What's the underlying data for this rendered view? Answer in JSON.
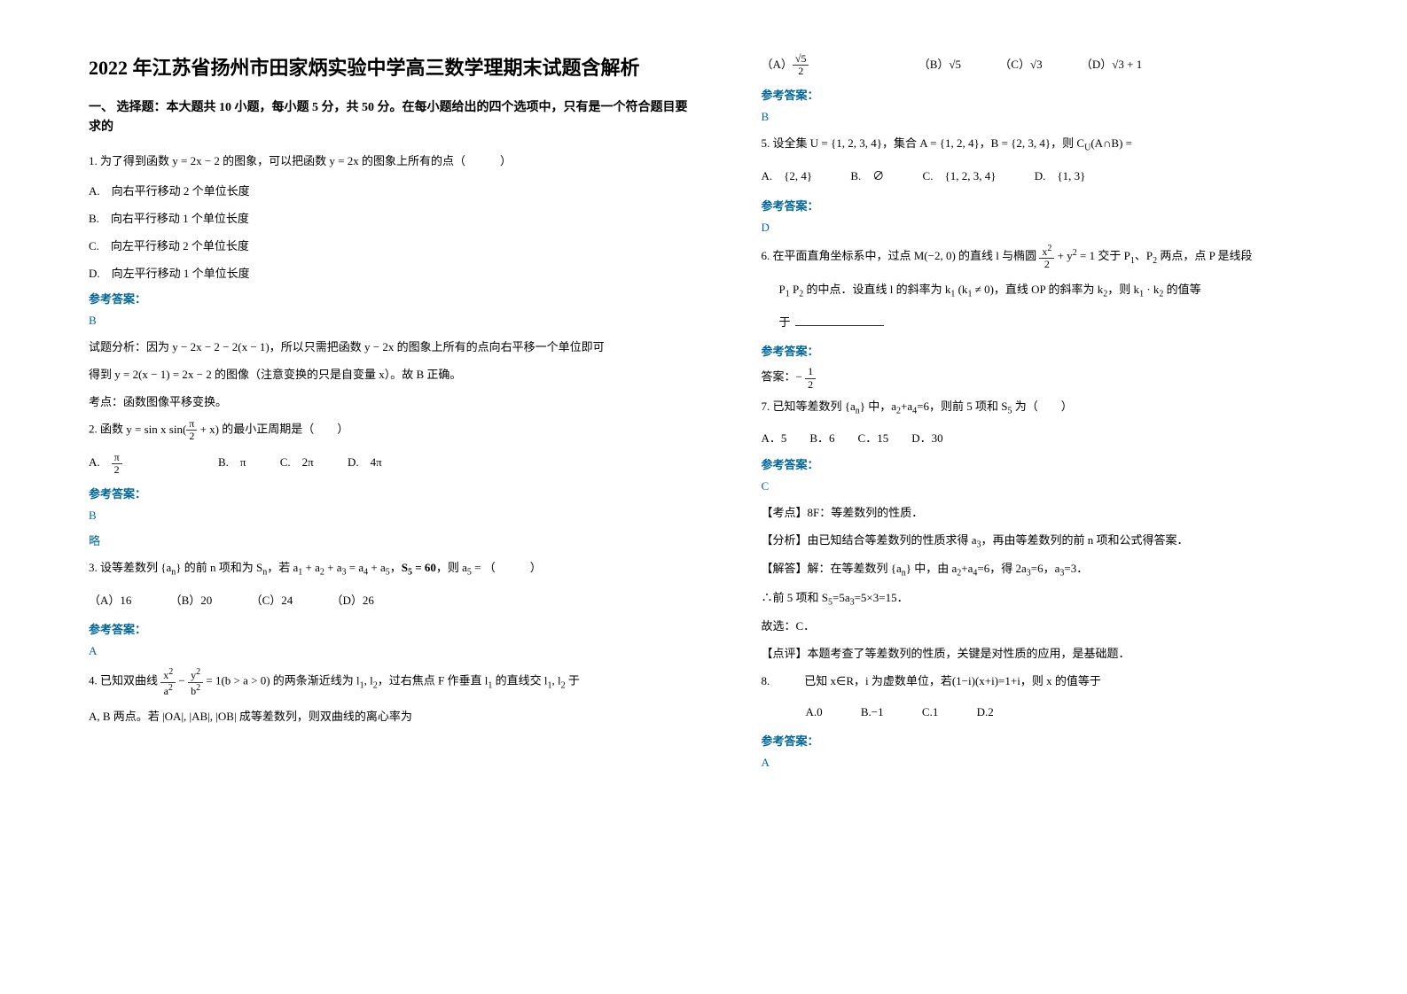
{
  "title": "2022 年江苏省扬州市田家炳实验中学高三数学理期末试题含解析",
  "section1_title": "一、 选择题：本大题共 10 小题，每小题 5 分，共 50 分。在每小题给出的四个选项中，只有是一个符合题目要求的",
  "q1": {
    "stem": "1. 为了得到函数 y = 2x − 2 的图象，可以把函数 y = 2x 的图象上所有的点（　　　）",
    "optA": "A.　向右平行移动 2 个单位长度",
    "optB": "B.　向右平行移动 1 个单位长度",
    "optC": "C.　向左平行移动 2 个单位长度",
    "optD": "D.　向左平行移动 1 个单位长度",
    "answer": "B",
    "analysis1": "试题分析：因为 y − 2x − 2 − 2(x − 1)，所以只需把函数 y − 2x 的图象上所有的点向右平移一个单位即可",
    "analysis2": "得到 y = 2(x − 1) = 2x − 2 的图像（注意变换的只是自变量 x）。故 B 正确。",
    "point": "考点：函数图像平移变换。"
  },
  "q2": {
    "stem_pre": "2. 函数",
    "stem_formula_html": "y = sin x sin(<span class='frac'><span class='num'>π</span><span class='den'>2</span></span> + x)",
    "stem_post": "的最小正周期是（　　）",
    "optA_html": "A.　<span class='frac'><span class='num'>π</span><span class='den'>2</span></span>",
    "optB": "B.　π",
    "optC": "C.　2π",
    "optD": "D.　4π",
    "answer": "B",
    "extra": "略"
  },
  "q3": {
    "stem_html": "3. 设等差数列 {a<sub>n</sub>} 的前 n 项和为 S<sub>n</sub>，若 a<sub>1</sub> + a<sub>2</sub> + a<sub>3</sub> = a<sub>4</sub> + a<sub>5</sub>，<b>S<sub>5</sub> = 60</b>，则 a<sub>5</sub> = （　　　）",
    "optA": "（A）16",
    "optB": "（B）20",
    "optC": "（C）24",
    "optD": "（D）26",
    "answer": "A"
  },
  "q4": {
    "stem_html": "4. 已知双曲线 <span class='frac'><span class='num'>x<sup>2</sup></span><span class='den'>a<sup>2</sup></span></span> − <span class='frac'><span class='num'>y<sup>2</sup></span><span class='den'>b<sup>2</sup></span></span> = 1(b > a > 0) 的两条渐近线为 l<sub>1</sub>, l<sub>2</sub>，过右焦点 F 作垂直 l<sub>1</sub> 的直线交 l<sub>1</sub>, l<sub>2</sub> 于",
    "stem2_html": "A, B 两点。若 |OA|, |AB|, |OB| 成等差数列，则双曲线的离心率为",
    "optA_html": "（A）<span class='frac'><span class='num'>√5</span><span class='den'>2</span></span>",
    "optB": "（B）√5",
    "optC": "（C）√3",
    "optD": "（D）√3 + 1",
    "answer": "B"
  },
  "q5": {
    "stem_html": "5. 设全集 U = {1, 2, 3, 4}，集合 A = {1, 2, 4}，B = {2, 3, 4}，则 C<sub>U</sub>(A∩B) =",
    "optA": "A.　{2, 4}",
    "optB": "B.　∅",
    "optC": "C.　{1, 2, 3, 4}",
    "optD": "D.　{1, 3}",
    "answer": "D"
  },
  "q6": {
    "stem_html": "6. 在平面直角坐标系中，过点 M(−2, 0) 的直线 l 与椭圆 <span class='frac'><span class='num'>x<sup>2</sup></span><span class='den'>2</span></span> + y<sup>2</sup> = 1 交于 P<sub>1</sub>、P<sub>2</sub> 两点，点 P 是线段",
    "stem2_html": "P<sub>1</sub> P<sub>2</sub> 的中点．设直线 l 的斜率为 k<sub>1</sub> (k<sub>1</sub> ≠ 0)，直线 OP 的斜率为 k<sub>2</sub>，则 k<sub>1</sub> · k<sub>2</sub> 的值等",
    "stem3": "于",
    "answer_html": "答案：− <span class='frac'><span class='num'>1</span><span class='den'>2</span></span>"
  },
  "q7": {
    "stem_html": "7. 已知等差数列 {a<sub>n</sub>} 中，a<sub>2</sub>+a<sub>4</sub>=6，则前 5 项和 S<sub>5</sub> 为（　　）",
    "options": "A．5　　B．6　　C．15　　D．30",
    "answer": "C",
    "point_label": "【考点】8F：等差数列的性质．",
    "analysis_label": "【分析】由已知结合等差数列的性质求得 a<sub>3</sub>，再由等差数列的前 n 项和公式得答案．",
    "solve_label": "【解答】解：在等差数列 {a<sub>n</sub>} 中，由 a<sub>2</sub>+a<sub>4</sub>=6，得 2a<sub>3</sub>=6，a<sub>3</sub>=3．",
    "solve2": "∴前 5 项和 S<sub>5</sub>=5a<sub>3</sub>=5×3=15．",
    "conclusion": "故选：C．",
    "comment": "【点评】本题考查了等差数列的性质，关键是对性质的应用，是基础题．"
  },
  "q8": {
    "stem": "8.　　　已知 x∈R，i 为虚数单位，若(1−i)(x+i)=1+i，则 x 的值等于",
    "optA": "A.0",
    "optB": "B.−1",
    "optC": "C.1",
    "optD": "D.2",
    "answer": "A"
  },
  "labels": {
    "answer": "参考答案："
  }
}
